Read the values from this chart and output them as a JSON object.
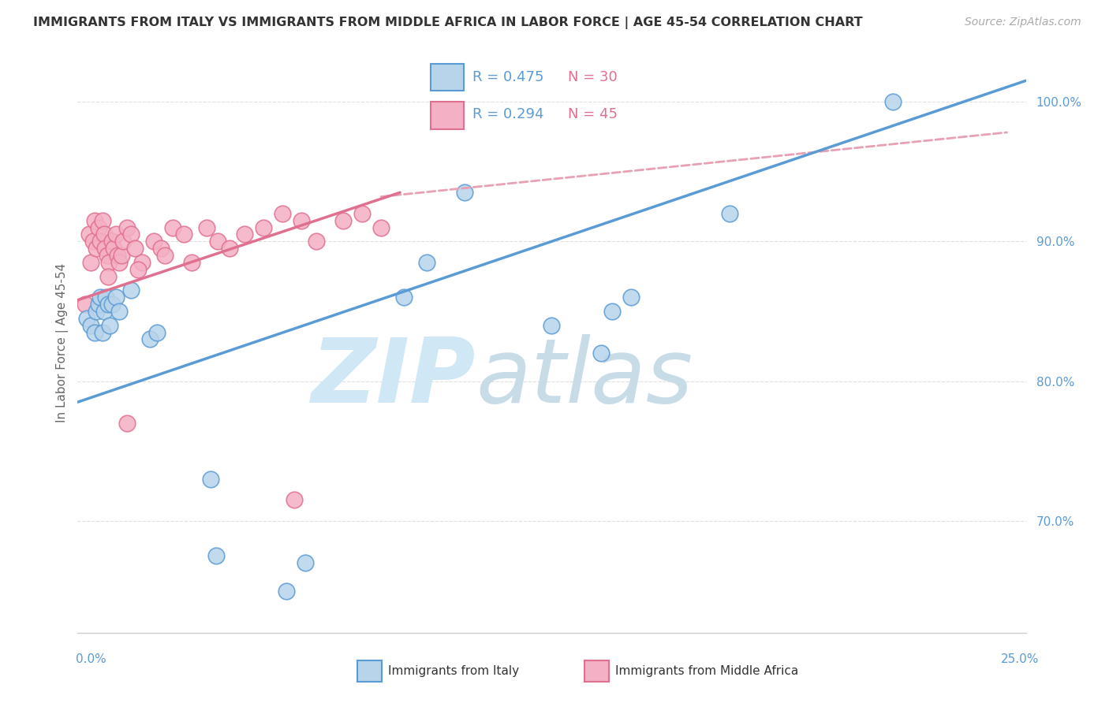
{
  "title": "IMMIGRANTS FROM ITALY VS IMMIGRANTS FROM MIDDLE AFRICA IN LABOR FORCE | AGE 45-54 CORRELATION CHART",
  "source": "Source: ZipAtlas.com",
  "ylabel": "In Labor Force | Age 45-54",
  "x_lim": [
    0.0,
    25.0
  ],
  "y_lim": [
    62.0,
    103.5
  ],
  "y_ticks": [
    70.0,
    80.0,
    90.0,
    100.0
  ],
  "color_italy_fill": "#b8d4ea",
  "color_italy_edge": "#5b9bd5",
  "color_africa_fill": "#f4b0c4",
  "color_africa_edge": "#e07090",
  "color_italy_line": "#5b9bd5",
  "color_africa_line": "#e07090",
  "color_dashed": "#e8a0b4",
  "watermark_ZIP": "ZIP",
  "watermark_atlas": "atlas",
  "watermark_color": "#d0e8f5",
  "legend_italy_R": "R = 0.475",
  "legend_italy_N": "N = 30",
  "legend_africa_R": "R = 0.294",
  "legend_africa_N": "N = 45",
  "italy_x": [
    0.25,
    0.35,
    0.45,
    0.5,
    0.55,
    0.6,
    0.65,
    0.7,
    0.75,
    0.8,
    0.85,
    0.9,
    1.0,
    1.1,
    1.4,
    1.9,
    2.1,
    3.5,
    3.65,
    5.5,
    6.0,
    8.6,
    9.2,
    10.2,
    12.5,
    14.1,
    14.6,
    17.2,
    21.5,
    13.8
  ],
  "italy_y": [
    84.5,
    84.0,
    83.5,
    85.0,
    85.5,
    86.0,
    83.5,
    85.0,
    86.0,
    85.5,
    84.0,
    85.5,
    86.0,
    85.0,
    86.5,
    83.0,
    83.5,
    73.0,
    67.5,
    65.0,
    67.0,
    86.0,
    88.5,
    93.5,
    84.0,
    85.0,
    86.0,
    92.0,
    100.0,
    82.0
  ],
  "africa_x": [
    0.2,
    0.3,
    0.35,
    0.4,
    0.45,
    0.5,
    0.55,
    0.6,
    0.65,
    0.7,
    0.72,
    0.78,
    0.82,
    0.9,
    0.95,
    1.0,
    1.05,
    1.1,
    1.15,
    1.2,
    1.3,
    1.4,
    1.5,
    1.7,
    2.0,
    2.2,
    2.5,
    2.8,
    3.0,
    3.4,
    3.7,
    4.0,
    4.4,
    4.9,
    5.4,
    5.9,
    6.3,
    7.0,
    7.5,
    8.0,
    1.3,
    0.8,
    1.6,
    2.3,
    5.7
  ],
  "africa_y": [
    85.5,
    90.5,
    88.5,
    90.0,
    91.5,
    89.5,
    91.0,
    90.0,
    91.5,
    90.5,
    89.5,
    89.0,
    88.5,
    90.0,
    89.5,
    90.5,
    89.0,
    88.5,
    89.0,
    90.0,
    91.0,
    90.5,
    89.5,
    88.5,
    90.0,
    89.5,
    91.0,
    90.5,
    88.5,
    91.0,
    90.0,
    89.5,
    90.5,
    91.0,
    92.0,
    91.5,
    90.0,
    91.5,
    92.0,
    91.0,
    77.0,
    87.5,
    88.0,
    89.0,
    71.5
  ],
  "italy_line_x0": 0.0,
  "italy_line_x1": 25.0,
  "italy_line_y0": 78.5,
  "italy_line_y1": 101.5,
  "africa_line_x0": 0.0,
  "africa_line_x1": 8.5,
  "africa_line_y0": 85.8,
  "africa_line_y1": 93.5,
  "dashed_line_x0": 8.0,
  "dashed_line_x1": 24.5,
  "dashed_line_y0": 93.2,
  "dashed_line_y1": 97.8,
  "grid_color": "#e0e0e0",
  "bg_color": "#ffffff",
  "title_fontsize": 11.5,
  "source_fontsize": 10,
  "tick_fontsize": 11,
  "R_text_color": "#5b9bd5",
  "N_text_color": "#e07090"
}
